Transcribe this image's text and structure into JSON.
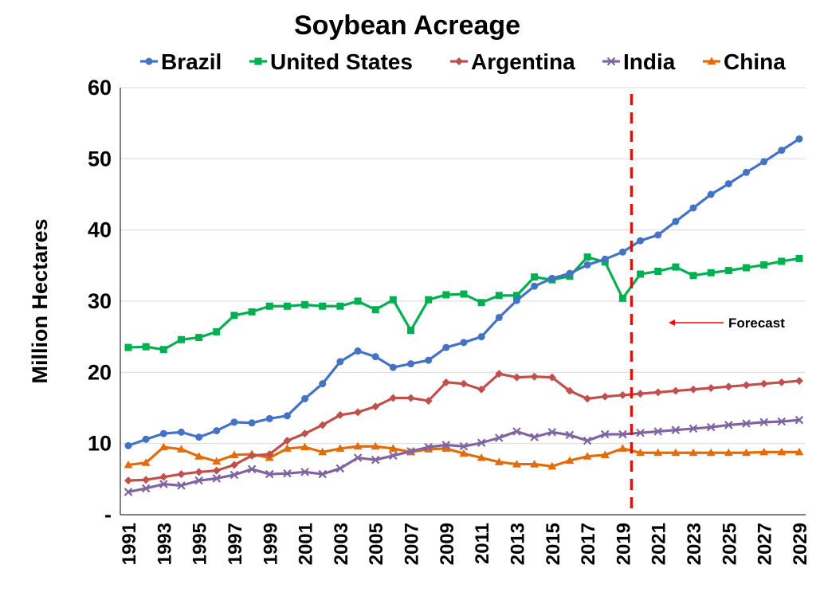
{
  "chart_data": {
    "type": "line",
    "title": "Soybean Acreage",
    "xlabel": "",
    "ylabel": "Million Hectares",
    "ylim": [
      0,
      60
    ],
    "y_ticks": [
      "-",
      "10",
      "20",
      "30",
      "40",
      "50",
      "60"
    ],
    "y_tick_values": [
      0,
      10,
      20,
      30,
      40,
      50,
      60
    ],
    "x_ticks": [
      "1991",
      "1993",
      "1995",
      "1997",
      "1999",
      "2001",
      "2003",
      "2005",
      "2007",
      "2009",
      "2011",
      "2013",
      "2015",
      "2017",
      "2019",
      "2021",
      "2023",
      "2025",
      "2027",
      "2029"
    ],
    "grid": "horizontal",
    "legend_position": "top",
    "x": [
      1991,
      1992,
      1993,
      1994,
      1995,
      1996,
      1997,
      1998,
      1999,
      2000,
      2001,
      2002,
      2003,
      2004,
      2005,
      2006,
      2007,
      2008,
      2009,
      2010,
      2011,
      2012,
      2013,
      2014,
      2015,
      2016,
      2017,
      2018,
      2019,
      2020,
      2021,
      2022,
      2023,
      2024,
      2025,
      2026,
      2027,
      2028,
      2029
    ],
    "series": [
      {
        "name": "Brazil",
        "color": "#4472C4",
        "marker": "circle",
        "values": [
          9.7,
          10.6,
          11.4,
          11.6,
          10.9,
          11.8,
          13.0,
          12.9,
          13.5,
          13.9,
          16.3,
          18.4,
          21.5,
          23.0,
          22.2,
          20.7,
          21.2,
          21.7,
          23.5,
          24.2,
          25.0,
          27.7,
          30.1,
          32.1,
          33.2,
          33.9,
          35.1,
          35.9,
          36.9,
          38.5,
          39.3,
          41.2,
          43.1,
          45.0,
          46.5,
          48.1,
          49.6,
          51.2,
          52.8
        ]
      },
      {
        "name": "United States",
        "color": "#00B050",
        "marker": "square",
        "values": [
          23.5,
          23.6,
          23.2,
          24.6,
          24.9,
          25.7,
          28.0,
          28.5,
          29.3,
          29.3,
          29.5,
          29.3,
          29.3,
          30.0,
          28.8,
          30.2,
          25.9,
          30.2,
          30.9,
          31.0,
          29.8,
          30.8,
          30.8,
          33.4,
          33.0,
          33.5,
          36.2,
          35.5,
          30.4,
          33.8,
          34.2,
          34.8,
          33.6,
          34.0,
          34.3,
          34.7,
          35.1,
          35.6,
          36.0
        ]
      },
      {
        "name": "Argentina",
        "color": "#C0504D",
        "marker": "diamond",
        "values": [
          4.8,
          4.9,
          5.3,
          5.7,
          6.0,
          6.2,
          7.0,
          8.3,
          8.5,
          10.4,
          11.4,
          12.6,
          14.0,
          14.4,
          15.2,
          16.4,
          16.4,
          16.0,
          18.6,
          18.4,
          17.6,
          19.8,
          19.3,
          19.4,
          19.3,
          17.4,
          16.3,
          16.6,
          16.8,
          17.0,
          17.2,
          17.4,
          17.6,
          17.8,
          18.0,
          18.2,
          18.4,
          18.6,
          18.8
        ]
      },
      {
        "name": "India",
        "color": "#8064A2",
        "marker": "cross",
        "values": [
          3.2,
          3.7,
          4.3,
          4.1,
          4.8,
          5.1,
          5.6,
          6.4,
          5.7,
          5.8,
          6.0,
          5.7,
          6.5,
          8.0,
          7.7,
          8.3,
          8.9,
          9.5,
          9.8,
          9.6,
          10.1,
          10.8,
          11.7,
          10.9,
          11.6,
          11.2,
          10.4,
          11.3,
          11.3,
          11.5,
          11.7,
          11.9,
          12.1,
          12.3,
          12.6,
          12.8,
          13.0,
          13.1,
          13.3
        ]
      },
      {
        "name": "China",
        "color": "#E36C09",
        "marker": "triangle",
        "values": [
          7.0,
          7.3,
          9.5,
          9.2,
          8.2,
          7.5,
          8.4,
          8.5,
          8.0,
          9.3,
          9.5,
          8.8,
          9.3,
          9.6,
          9.6,
          9.3,
          8.8,
          9.2,
          9.3,
          8.6,
          8.0,
          7.4,
          7.1,
          7.1,
          6.8,
          7.6,
          8.2,
          8.4,
          9.3,
          8.7,
          8.7,
          8.7,
          8.7,
          8.7,
          8.7,
          8.7,
          8.8,
          8.8,
          8.8
        ]
      }
    ],
    "forecast_line_year": 2019.5,
    "forecast_line_color": "#FF0000",
    "annotation": "Forecast"
  }
}
